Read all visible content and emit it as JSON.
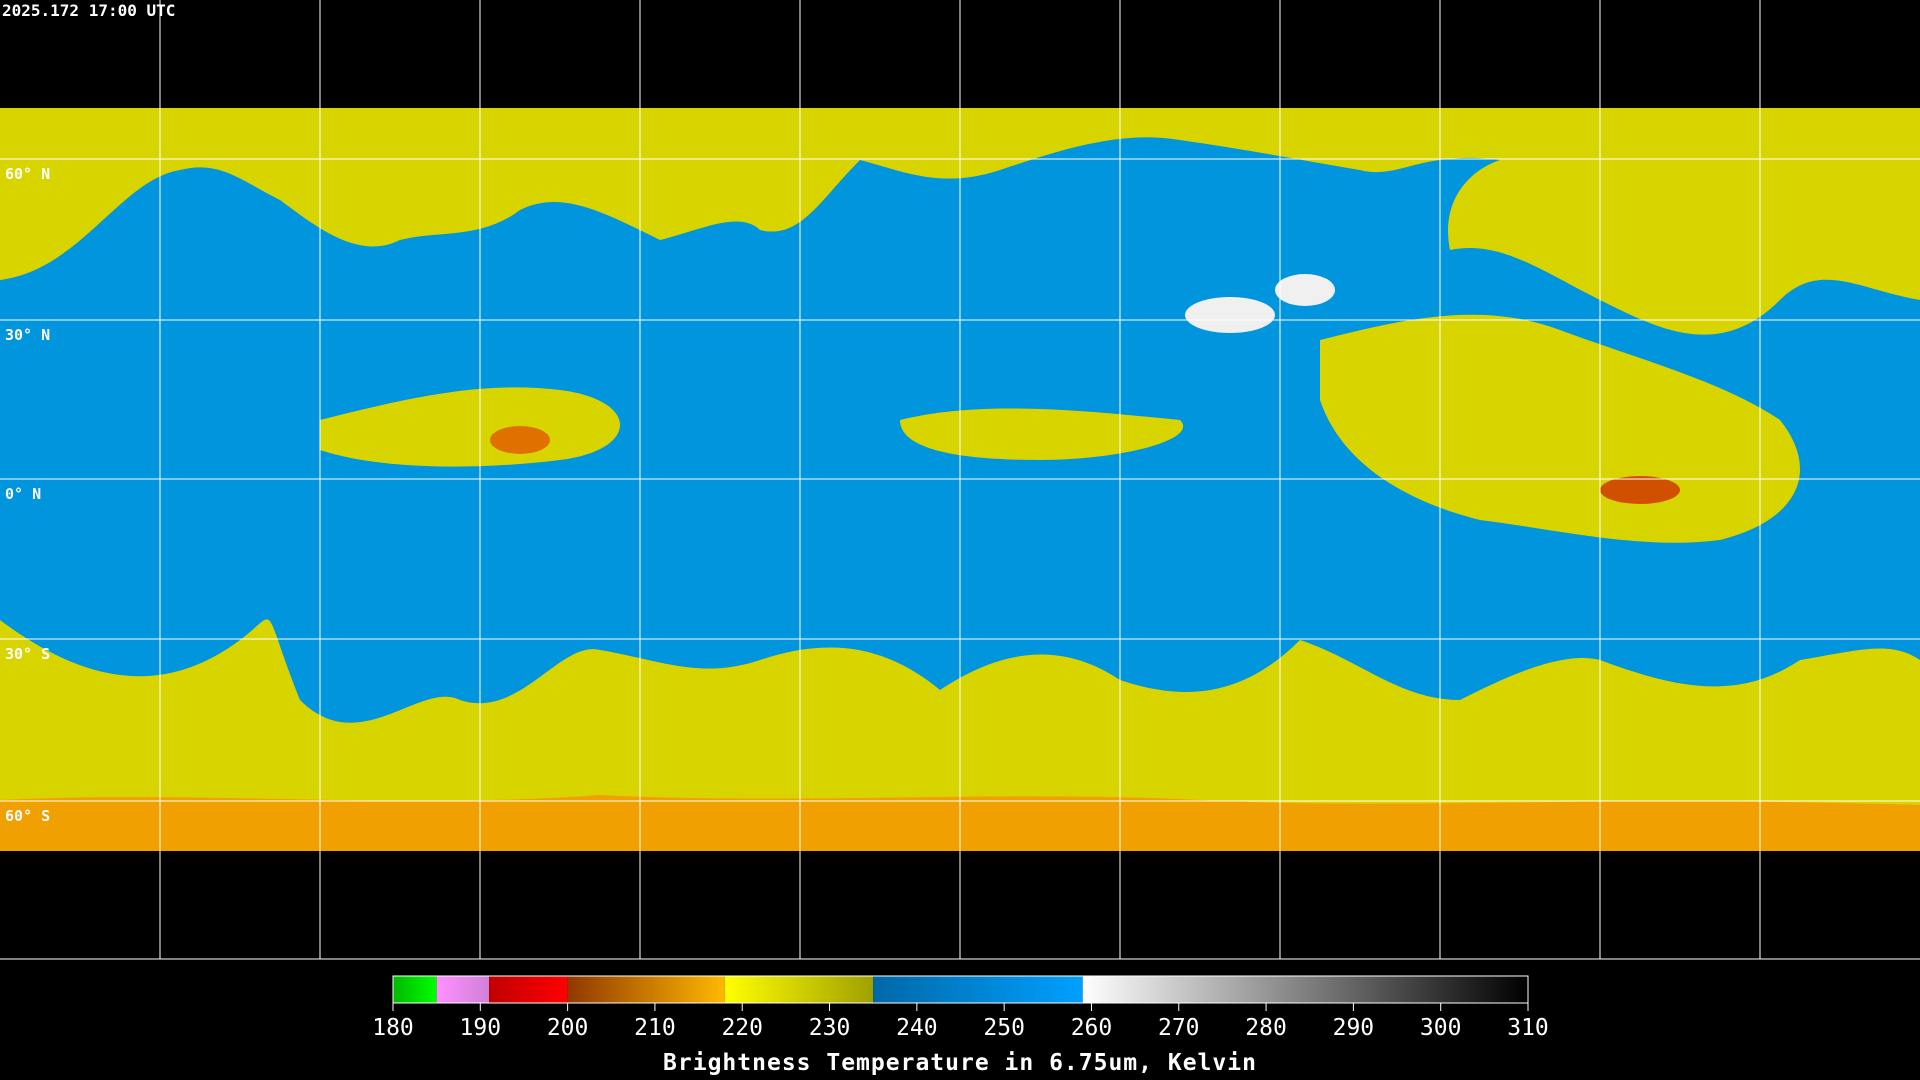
{
  "header": {
    "timestamp": "2025.172 17:00 UTC"
  },
  "map": {
    "latitude_labels": [
      "60° N",
      "30° N",
      "0° N",
      "30° S",
      "60° S"
    ]
  },
  "colorbar": {
    "range": [
      180,
      310
    ],
    "ticks": [
      180,
      190,
      200,
      210,
      220,
      230,
      240,
      250,
      260,
      270,
      280,
      290,
      300,
      310
    ],
    "segments": [
      {
        "from": 180,
        "to": 185,
        "colors": [
          "#00b800",
          "#00ff00"
        ]
      },
      {
        "from": 185,
        "to": 191,
        "colors": [
          "#ff90ff",
          "#d080d8"
        ]
      },
      {
        "from": 191,
        "to": 200,
        "colors": [
          "#c00000",
          "#ff0000"
        ]
      },
      {
        "from": 200,
        "to": 218,
        "colors": [
          "#903800",
          "#ffb800"
        ]
      },
      {
        "from": 218,
        "to": 235,
        "colors": [
          "#ffff00",
          "#a0a000"
        ]
      },
      {
        "from": 235,
        "to": 259,
        "colors": [
          "#0068a8",
          "#00a0ff"
        ]
      },
      {
        "from": 259,
        "to": 310,
        "colors": [
          "#ffffff",
          "#000000"
        ]
      }
    ],
    "title": "Brightness Temperature in 6.75um, Kelvin"
  }
}
